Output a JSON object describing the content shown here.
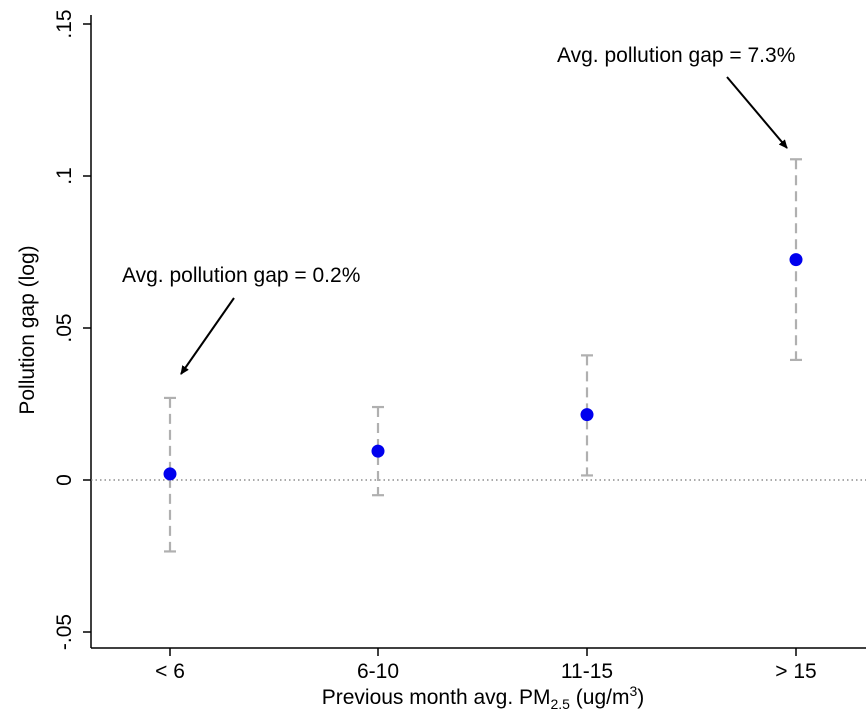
{
  "chart_data": {
    "type": "scatter",
    "title": "",
    "xlabel": "Previous month avg. PM",
    "xlabel_sub": "2.5",
    "xlabel_unit_pre": " (ug/m",
    "xlabel_unit_sup": "3",
    "xlabel_unit_post": ")",
    "ylabel": "Pollution gap (log)",
    "ylim": [
      -0.05,
      0.15
    ],
    "yticks": [
      {
        "value": -0.05,
        "label": "-.05"
      },
      {
        "value": 0,
        "label": "0"
      },
      {
        "value": 0.05,
        "label": ".05"
      },
      {
        "value": 0.1,
        "label": ".1"
      },
      {
        "value": 0.15,
        "label": ".15"
      }
    ],
    "categories": [
      "< 6",
      "6-10",
      "11-15",
      "> 15"
    ],
    "values": [
      0.002,
      0.0095,
      0.0215,
      0.0725
    ],
    "ci_low": [
      -0.0235,
      -0.005,
      0.0015,
      0.0395
    ],
    "ci_high": [
      0.027,
      0.024,
      0.041,
      0.1055
    ],
    "reference_line": 0,
    "grid": false,
    "marker_color": "#0000ee",
    "errorbar_color": "#b0b0b0",
    "annotations": [
      {
        "text": "Avg. pollution gap = 0.2%",
        "category_index": 0
      },
      {
        "text": "Avg. pollution gap = 7.3%",
        "category_index": 3
      }
    ]
  }
}
